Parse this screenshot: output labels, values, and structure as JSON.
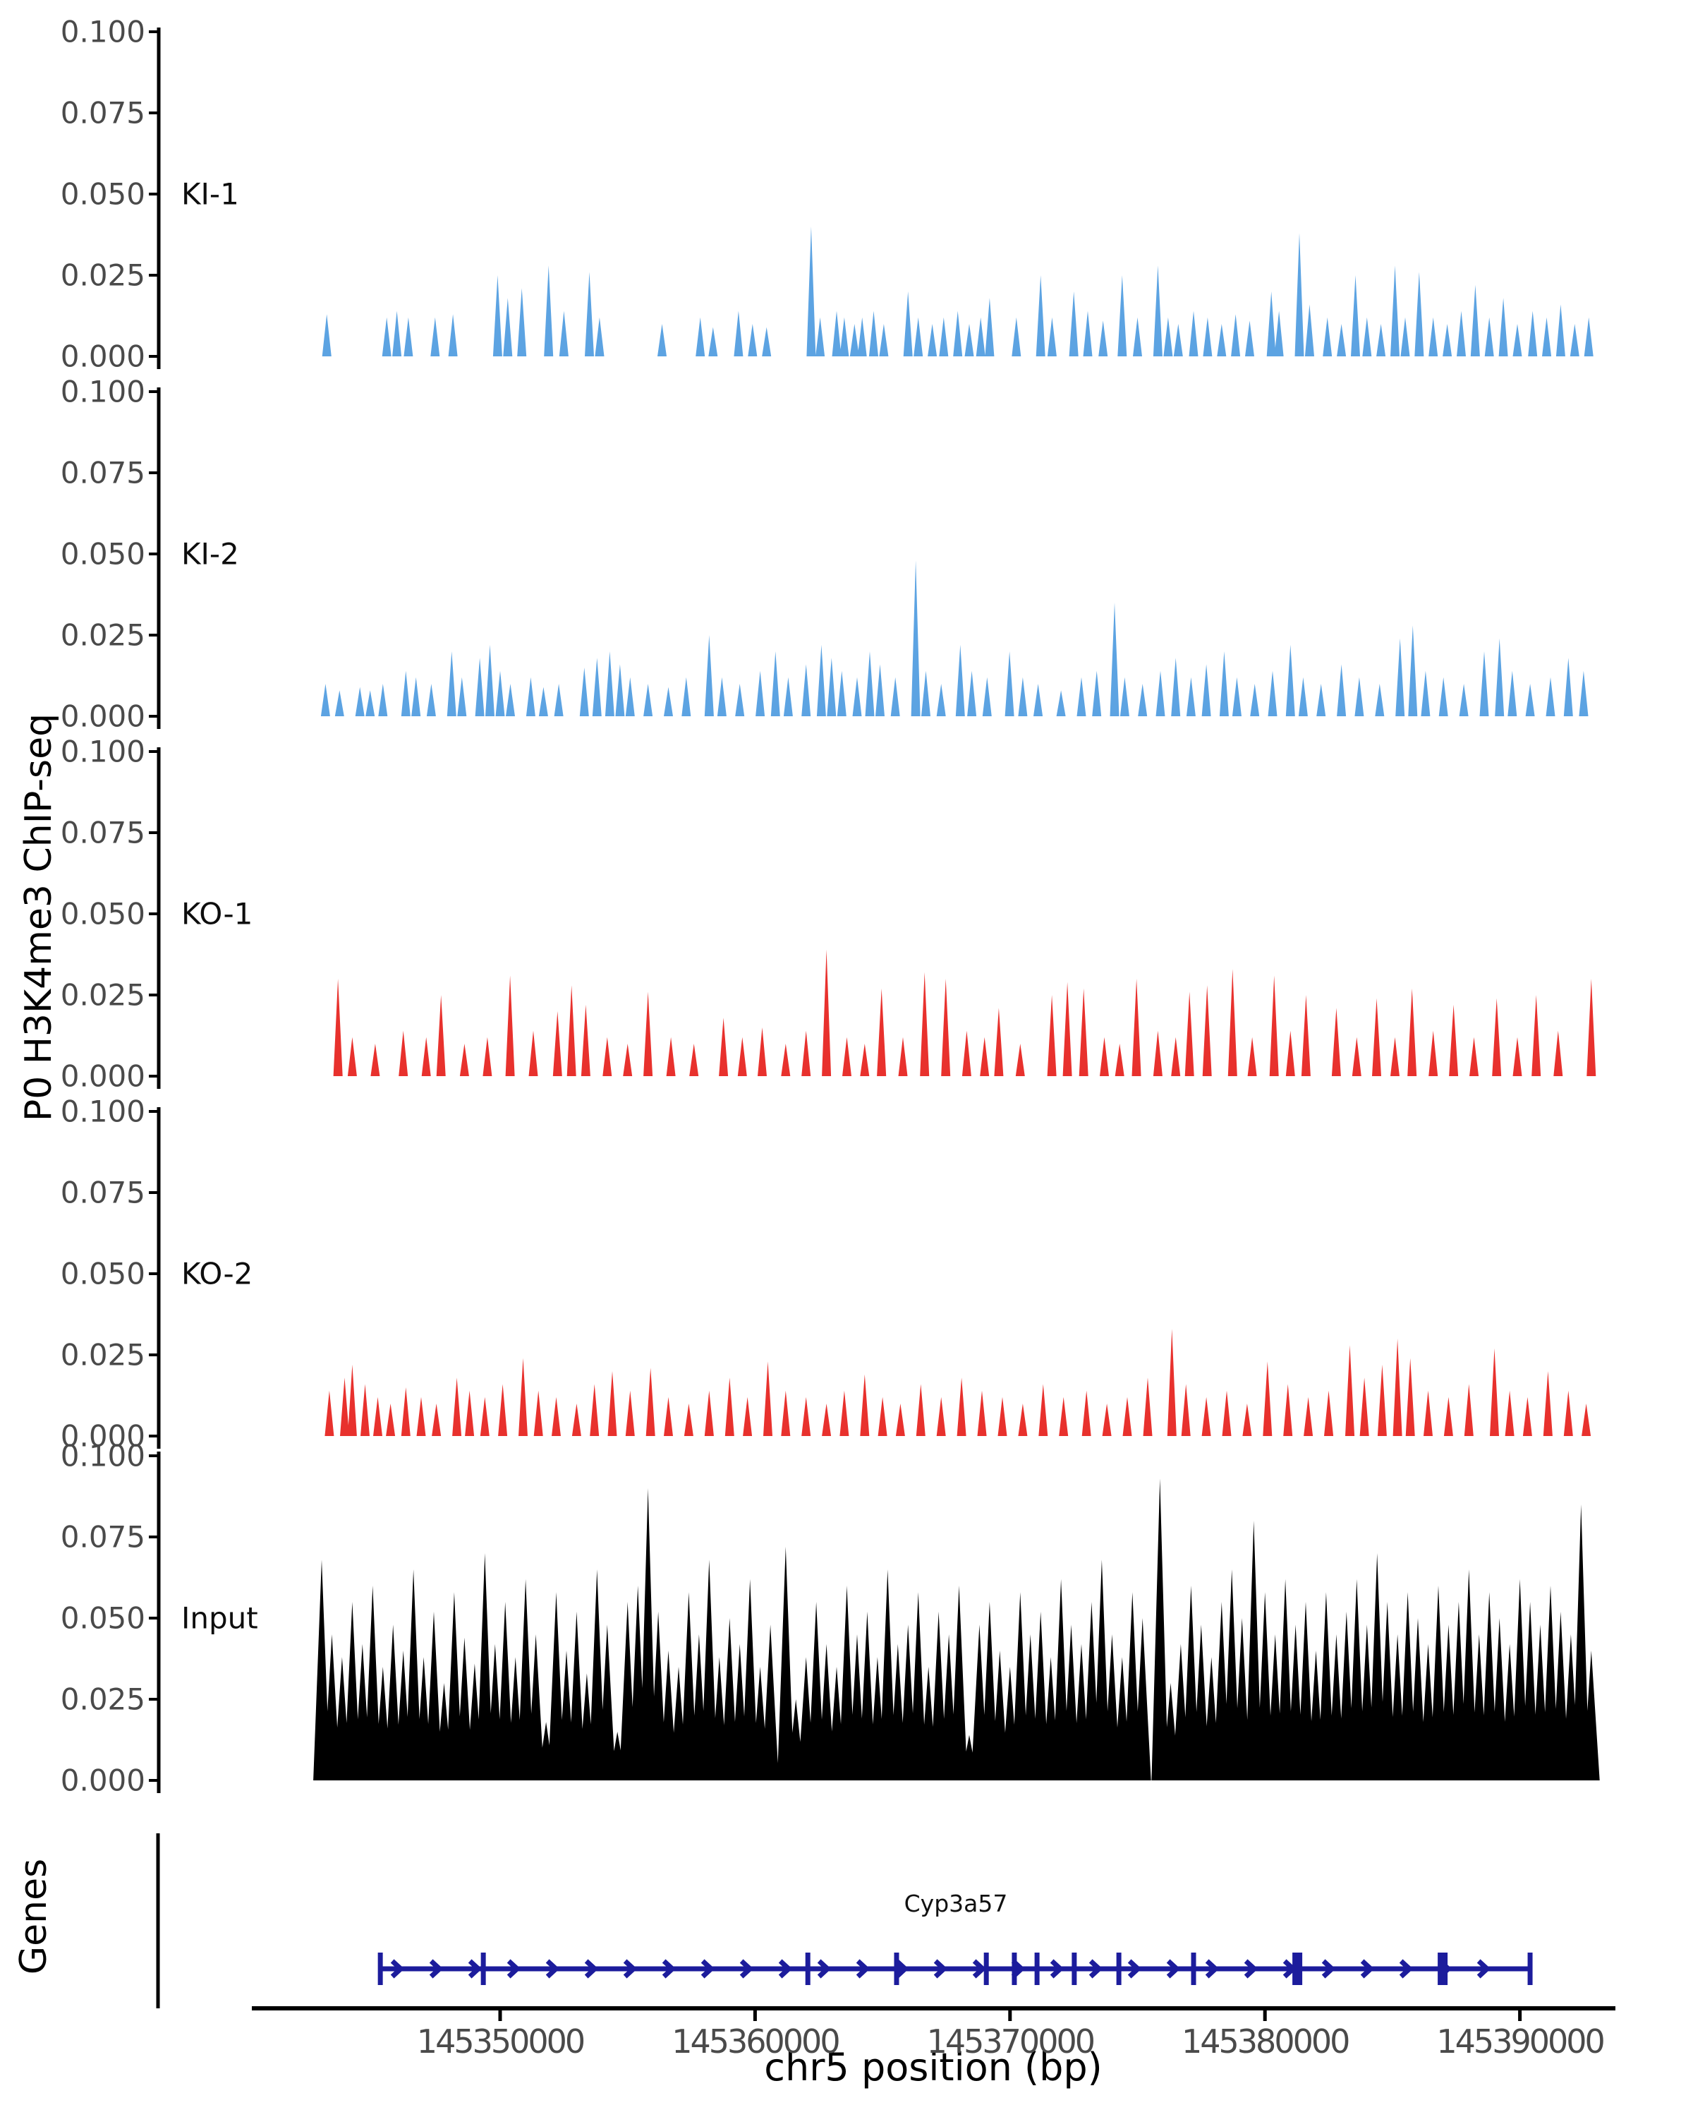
{
  "chart_data": {
    "type": "area",
    "title": "",
    "y_axis_label": "P0 H3K4me3 ChIP-seq",
    "genes_panel_label": "Genes",
    "x_axis_label": "chr5 position (bp)",
    "ylim": [
      0,
      0.1
    ],
    "y_ticks": [
      0.0,
      0.025,
      0.05,
      0.075,
      0.1
    ],
    "y_tick_labels": [
      "0.000",
      "0.025",
      "0.050",
      "0.075",
      "0.100"
    ],
    "x_ticks": [
      145350000,
      145360000,
      145370000,
      145380000,
      145390000
    ],
    "x_tick_labels": [
      "145350000",
      "145360000",
      "145370000",
      "145380000",
      "145390000"
    ],
    "region": {
      "chrom": "chr5",
      "start": 145343000,
      "end": 145393200
    },
    "value_scale": 0.001,
    "peak_format": "flat pairs: offset_bp_from_region_start, height_x1000",
    "axis_color": "#000000",
    "tick_label_color": "#4a4a4a",
    "legend_position": "none",
    "grid": false,
    "series": [
      {
        "name": "KI-1",
        "color": "#5ca3e2",
        "peak_halfwidth_bp": 180,
        "peaks": [
          200,
          13,
          2550,
          12,
          2950,
          14,
          3400,
          12,
          4450,
          12,
          5150,
          13,
          6900,
          25,
          7300,
          18,
          7850,
          21,
          8900,
          28,
          9500,
          14,
          10500,
          26,
          10900,
          12,
          13350,
          10,
          14850,
          12,
          15350,
          9,
          16350,
          14,
          16900,
          10,
          17450,
          9,
          19200,
          40,
          19550,
          12,
          20200,
          14,
          20500,
          12,
          20900,
          10,
          21200,
          12,
          21650,
          14,
          22050,
          10,
          23000,
          20,
          23400,
          12,
          23950,
          10,
          24400,
          12,
          24950,
          14,
          25400,
          10,
          25850,
          12,
          26200,
          18,
          27250,
          12,
          28200,
          25,
          28650,
          12,
          29500,
          20,
          30050,
          14,
          30650,
          11,
          31400,
          25,
          32000,
          12,
          32800,
          28,
          33200,
          12,
          33600,
          10,
          34200,
          14,
          34750,
          12,
          35300,
          10,
          35850,
          13,
          36400,
          11,
          37250,
          20,
          37550,
          14,
          38350,
          38,
          38750,
          16,
          39450,
          12,
          40000,
          10,
          40550,
          25,
          41000,
          12,
          41550,
          10,
          42100,
          28,
          42500,
          12,
          43050,
          26,
          43600,
          12,
          44150,
          10,
          44700,
          14,
          45250,
          22,
          45800,
          12,
          46350,
          18,
          46900,
          10,
          47500,
          14,
          48050,
          12,
          48600,
          16,
          49150,
          10,
          49700,
          12
        ]
      },
      {
        "name": "KI-2",
        "color": "#5ca3e2",
        "peak_halfwidth_bp": 180,
        "peaks": [
          150,
          10,
          700,
          8,
          1500,
          9,
          1900,
          8,
          2400,
          10,
          3300,
          14,
          3700,
          12,
          4300,
          10,
          5100,
          20,
          5500,
          12,
          6200,
          18,
          6600,
          22,
          7000,
          14,
          7400,
          10,
          8200,
          12,
          8700,
          9,
          9300,
          10,
          10300,
          15,
          10800,
          18,
          11300,
          20,
          11700,
          16,
          12100,
          12,
          12800,
          10,
          13600,
          9,
          14300,
          12,
          15200,
          25,
          15700,
          12,
          16400,
          10,
          17200,
          14,
          17800,
          20,
          18300,
          12,
          19000,
          16,
          19600,
          22,
          20000,
          18,
          20400,
          14,
          21000,
          12,
          21500,
          20,
          21900,
          16,
          22500,
          12,
          23300,
          48,
          23700,
          14,
          24300,
          10,
          25050,
          22,
          25500,
          14,
          26100,
          12,
          26980,
          20,
          27500,
          12,
          28100,
          10,
          29000,
          8,
          29800,
          12,
          30400,
          14,
          31100,
          35,
          31500,
          12,
          32200,
          10,
          32900,
          14,
          33500,
          18,
          34100,
          12,
          34700,
          16,
          35400,
          20,
          35900,
          12,
          36600,
          10,
          37300,
          14,
          38000,
          22,
          38500,
          12,
          39200,
          10,
          40000,
          16,
          40700,
          12,
          41500,
          10,
          42300,
          24,
          42800,
          28,
          43300,
          14,
          44000,
          12,
          44800,
          10,
          45600,
          20,
          46200,
          24,
          46700,
          14,
          47400,
          10,
          48200,
          12,
          48900,
          18,
          49500,
          14
        ]
      },
      {
        "name": "KO-1",
        "color": "#e8312d",
        "peak_halfwidth_bp": 180,
        "peaks": [
          640,
          30,
          1200,
          12,
          2100,
          10,
          3200,
          14,
          4100,
          12,
          4680,
          25,
          5600,
          10,
          6500,
          12,
          7390,
          31,
          8300,
          14,
          9250,
          20,
          9800,
          28,
          10360,
          22,
          11200,
          12,
          12000,
          10,
          12800,
          26,
          13700,
          12,
          14600,
          10,
          15760,
          18,
          16500,
          12,
          17280,
          15,
          18200,
          10,
          19000,
          14,
          19800,
          39,
          20600,
          12,
          21300,
          10,
          21960,
          27,
          22800,
          12,
          23650,
          32,
          24480,
          30,
          25300,
          14,
          26000,
          12,
          26560,
          21,
          27400,
          10,
          28640,
          25,
          29250,
          29,
          29890,
          27,
          30700,
          12,
          31300,
          10,
          31960,
          30,
          32800,
          14,
          33500,
          12,
          34040,
          26,
          34730,
          28,
          35730,
          33,
          36500,
          12,
          37360,
          31,
          38000,
          14,
          38610,
          25,
          39800,
          21,
          40600,
          12,
          41380,
          24,
          42100,
          12,
          42770,
          27,
          43600,
          14,
          44400,
          22,
          45200,
          12,
          46090,
          24,
          46900,
          12,
          47640,
          25,
          48500,
          14,
          49800,
          30
        ]
      },
      {
        "name": "KO-2",
        "color": "#e8312d",
        "peak_halfwidth_bp": 180,
        "peaks": [
          300,
          14,
          900,
          18,
          1200,
          22,
          1700,
          16,
          2200,
          12,
          2700,
          10,
          3300,
          15,
          3900,
          12,
          4500,
          10,
          5300,
          18,
          5800,
          14,
          6400,
          12,
          7100,
          16,
          7900,
          24,
          8500,
          14,
          9200,
          12,
          10000,
          10,
          10700,
          16,
          11400,
          20,
          12100,
          14,
          12900,
          21,
          13600,
          12,
          14400,
          10,
          15200,
          14,
          16000,
          18,
          16700,
          12,
          17500,
          23,
          18200,
          14,
          19000,
          12,
          19800,
          10,
          20500,
          14,
          21300,
          19,
          22000,
          12,
          22700,
          10,
          23500,
          16,
          24300,
          12,
          25100,
          18,
          25900,
          14,
          26700,
          12,
          27500,
          10,
          28300,
          16,
          29100,
          12,
          30000,
          14,
          30800,
          10,
          31600,
          12,
          32400,
          18,
          33350,
          33,
          33900,
          16,
          34700,
          12,
          35500,
          14,
          36300,
          10,
          37100,
          23,
          37900,
          16,
          38700,
          12,
          39500,
          14,
          40330,
          28,
          40900,
          18,
          41600,
          22,
          42200,
          30,
          42700,
          24,
          43400,
          14,
          44200,
          12,
          45000,
          16,
          46000,
          27,
          46600,
          14,
          47300,
          12,
          48100,
          20,
          48900,
          14,
          49600,
          10
        ]
      },
      {
        "name": "Input",
        "color": "#000000",
        "peak_halfwidth_bp": 330,
        "peaks": [
          0,
          68,
          400,
          45,
          800,
          38,
          1200,
          55,
          1600,
          42,
          2000,
          60,
          2400,
          35,
          2800,
          48,
          3200,
          40,
          3600,
          65,
          4000,
          38,
          4400,
          52,
          4800,
          30,
          5200,
          58,
          5600,
          44,
          6000,
          36,
          6400,
          70,
          6800,
          42,
          7200,
          55,
          7600,
          38,
          8000,
          62,
          8400,
          45,
          8800,
          18,
          9200,
          58,
          9600,
          40,
          10000,
          52,
          10400,
          33,
          10800,
          65,
          11200,
          48,
          11600,
          15,
          12000,
          55,
          12400,
          60,
          12800,
          90,
          13200,
          52,
          13600,
          40,
          14000,
          35,
          14400,
          58,
          14800,
          45,
          15200,
          68,
          15600,
          38,
          16000,
          50,
          16400,
          42,
          16800,
          62,
          17200,
          35,
          17600,
          48,
          18200,
          72,
          18600,
          25,
          19000,
          38,
          19400,
          55,
          19800,
          42,
          20200,
          35,
          20600,
          60,
          21000,
          45,
          21400,
          52,
          21800,
          38,
          22200,
          65,
          22600,
          42,
          23000,
          48,
          23400,
          58,
          23800,
          35,
          24200,
          52,
          24600,
          45,
          25000,
          60,
          25400,
          14,
          25800,
          48,
          26200,
          55,
          26600,
          40,
          27000,
          35,
          27400,
          58,
          27800,
          45,
          28200,
          52,
          28600,
          38,
          29000,
          62,
          29400,
          48,
          29800,
          42,
          30200,
          55,
          30600,
          68,
          31000,
          45,
          31400,
          38,
          31800,
          58,
          32200,
          50,
          32880,
          93,
          33300,
          30,
          33700,
          42,
          34100,
          60,
          34500,
          48,
          34900,
          38,
          35300,
          55,
          35700,
          65,
          36100,
          50,
          36560,
          80,
          37000,
          58,
          37400,
          45,
          37800,
          62,
          38200,
          48,
          38600,
          55,
          39000,
          40,
          39400,
          58,
          39800,
          45,
          40200,
          52,
          40600,
          62,
          41000,
          48,
          41400,
          70,
          41800,
          55,
          42200,
          45,
          42600,
          58,
          43000,
          50,
          43400,
          42,
          43800,
          60,
          44200,
          48,
          44600,
          55,
          45000,
          65,
          45400,
          45,
          45800,
          58,
          46200,
          50,
          46600,
          42,
          47000,
          62,
          47400,
          55,
          47800,
          48,
          48200,
          60,
          48600,
          52,
          49000,
          45,
          49400,
          85,
          49800,
          40
        ]
      }
    ],
    "gene_track": {
      "gene_name": "Cyp3a57",
      "chrom": "chr5",
      "start": 145345300,
      "end": 145390440,
      "strand": "+",
      "color": "#1c1c9c",
      "exons": [
        145345300,
        145349340,
        145362070,
        145365550,
        145369070,
        145370170,
        145371060,
        145372520,
        145374270,
        145377200,
        145381270,
        145386970,
        145390400
      ],
      "wide_exons": [
        145381270,
        145386970
      ]
    }
  }
}
